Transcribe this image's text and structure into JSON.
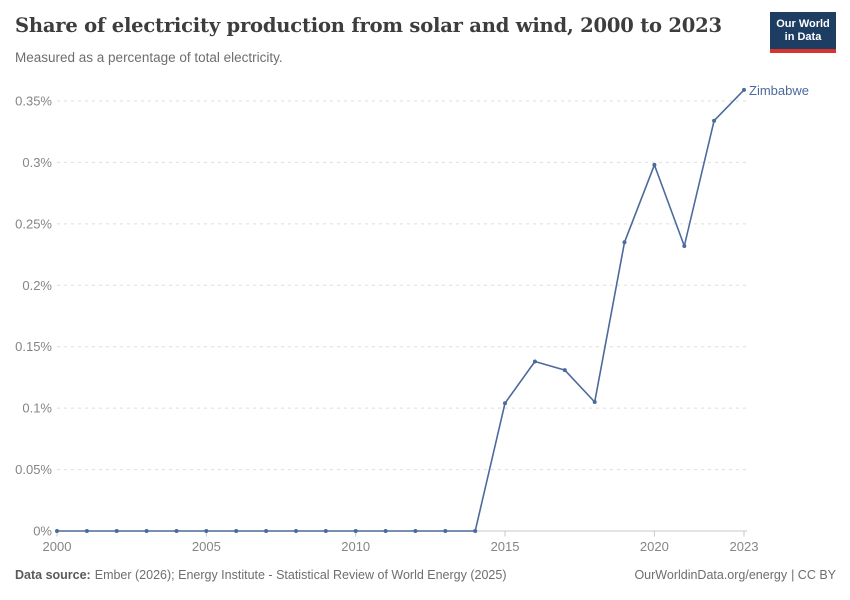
{
  "header": {
    "title": "Share of electricity production from solar and wind, 2000 to 2023",
    "subtitle": "Measured as a percentage of total electricity.",
    "logo": {
      "line1": "Our World",
      "line2": "in Data"
    }
  },
  "chart_data": {
    "type": "line",
    "title": "Share of electricity production from solar and wind, 2000 to 2023",
    "subtitle": "Measured as a percentage of total electricity.",
    "xlabel": "",
    "ylabel": "",
    "xlim": [
      2000,
      2023
    ],
    "ylim": [
      0,
      0.35
    ],
    "grid": "horizontal-dashed",
    "legend_position": "line-end-label",
    "x": [
      2000,
      2001,
      2002,
      2003,
      2004,
      2005,
      2006,
      2007,
      2008,
      2009,
      2010,
      2011,
      2012,
      2013,
      2014,
      2015,
      2016,
      2017,
      2018,
      2019,
      2020,
      2021,
      2022,
      2023
    ],
    "series": [
      {
        "name": "Zimbabwe",
        "color": "#4c6a9c",
        "unit": "%",
        "values": [
          0,
          0,
          0,
          0,
          0,
          0,
          0,
          0,
          0,
          0,
          0,
          0,
          0,
          0,
          0,
          0.104,
          0.138,
          0.131,
          0.105,
          0.235,
          0.298,
          0.232,
          0.334,
          0.359
        ]
      }
    ],
    "y_ticks": [
      {
        "value": 0,
        "label": "0%"
      },
      {
        "value": 0.05,
        "label": "0.05%"
      },
      {
        "value": 0.1,
        "label": "0.1%"
      },
      {
        "value": 0.15,
        "label": "0.15%"
      },
      {
        "value": 0.2,
        "label": "0.2%"
      },
      {
        "value": 0.25,
        "label": "0.25%"
      },
      {
        "value": 0.3,
        "label": "0.3%"
      },
      {
        "value": 0.35,
        "label": "0.35%"
      }
    ],
    "x_ticks": [
      {
        "value": 2000,
        "label": "2000"
      },
      {
        "value": 2005,
        "label": "2005"
      },
      {
        "value": 2010,
        "label": "2010"
      },
      {
        "value": 2015,
        "label": "2015"
      },
      {
        "value": 2020,
        "label": "2020"
      },
      {
        "value": 2023,
        "label": "2023"
      }
    ]
  },
  "footer": {
    "source_label": "Data source:",
    "source_text": "Ember (2026); Energy Institute - Statistical Review of World Energy (2025)",
    "url_text": "OurWorldinData.org/energy",
    "license_text": "| CC BY"
  },
  "colors": {
    "series_blue": "#4c6a9c",
    "gridline": "#dedede",
    "axis": "#c8c8c8",
    "tick_label": "#858585",
    "title": "#3d3d3d",
    "subtitle": "#6e6e6e",
    "logo_navy": "#1d3d63",
    "logo_red": "#d7352c"
  }
}
